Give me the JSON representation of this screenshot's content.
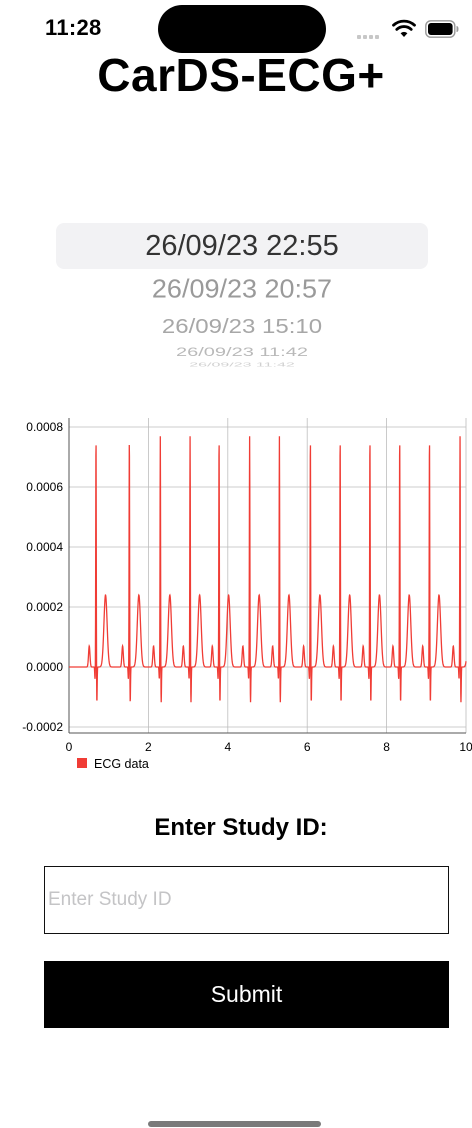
{
  "status_bar": {
    "time": "11:28"
  },
  "app": {
    "title": "CarDS-ECG+"
  },
  "picker": {
    "items": [
      "26/09/23 22:55",
      "26/09/23 20:57",
      "26/09/23 15:10",
      "26/09/23 11:42",
      "26/09/23 11:42"
    ],
    "selected_index": 0
  },
  "chart_data": {
    "type": "line",
    "title": "",
    "xlabel": "",
    "ylabel": "",
    "xlim": [
      0,
      10
    ],
    "ylim": [
      -0.00022,
      0.00083
    ],
    "x_ticks": [
      "0",
      "2",
      "4",
      "6",
      "8",
      "10"
    ],
    "y_ticks": [
      "-0.0002",
      "0.0000",
      "0.0002",
      "0.0004",
      "0.0006",
      "0.0008"
    ],
    "grid": true,
    "legend": "bottom-left",
    "series": [
      {
        "name": "ECG data",
        "color": "#f03c35",
        "beat_times": [
          0.68,
          1.52,
          2.3,
          3.05,
          3.78,
          4.55,
          5.3,
          6.08,
          6.83,
          7.58,
          8.33,
          9.08,
          9.85
        ],
        "r_peak": 0.00077,
        "s_trough": -0.00012,
        "p_wave": 7e-05,
        "t_wave": 0.00024,
        "baseline": 0.0
      }
    ]
  },
  "form": {
    "label": "Enter Study ID:",
    "input_placeholder": "Enter Study ID",
    "input_value": "",
    "submit_label": "Submit"
  }
}
